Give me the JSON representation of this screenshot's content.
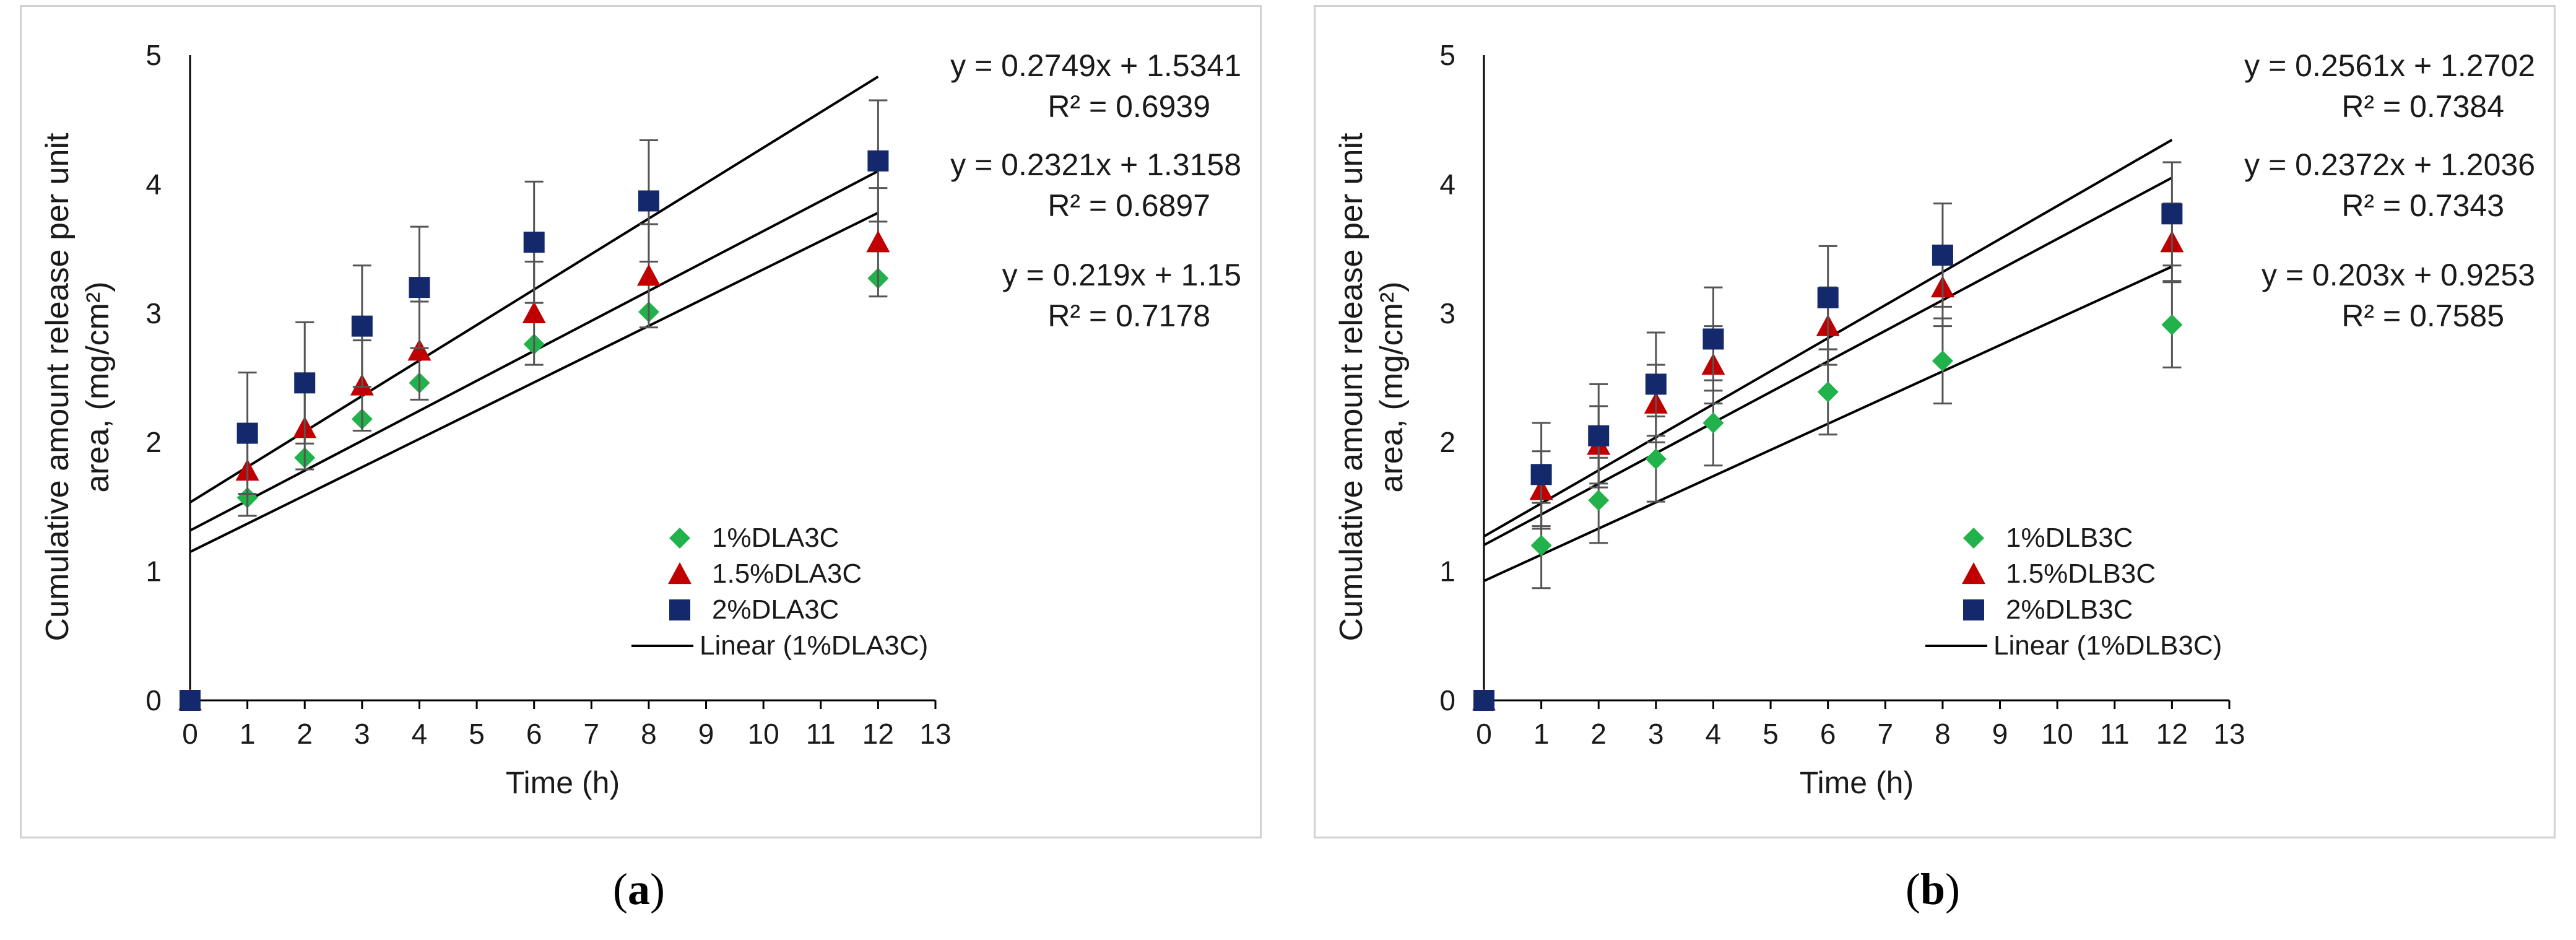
{
  "colors": {
    "series1": "#21b24b",
    "series2": "#c00000",
    "series3": "#13296b",
    "line": "#000000",
    "errbar": "#555555"
  },
  "chart_data": [
    {
      "panel": "a",
      "caption_letter": "a",
      "type": "scatter",
      "xlabel": "Time (h)",
      "ylabel_lines": [
        "Cumulative amount release per unit",
        "area, (mg/cm²)"
      ],
      "xlim": [
        0,
        13
      ],
      "ylim": [
        0,
        5
      ],
      "xticks": [
        "0",
        "1",
        "2",
        "3",
        "4",
        "5",
        "6",
        "7",
        "8",
        "9",
        "10",
        "11",
        "12",
        "13"
      ],
      "yticks": [
        "0",
        "1",
        "2",
        "3",
        "4",
        "5"
      ],
      "x": [
        0,
        1,
        2,
        3,
        4,
        6,
        8,
        12
      ],
      "series": [
        {
          "name": "1%DLA3C",
          "marker": "diamond",
          "values": [
            0,
            1.57,
            1.88,
            2.18,
            2.46,
            2.76,
            3.01,
            3.27
          ],
          "errors": [
            0,
            0,
            0,
            0,
            0,
            0,
            0,
            0
          ]
        },
        {
          "name": "1.5%DLA3C",
          "marker": "triangle",
          "values": [
            0,
            1.78,
            2.11,
            2.44,
            2.71,
            3.0,
            3.29,
            3.55
          ],
          "errors": [
            0,
            0.35,
            0.32,
            0.35,
            0.38,
            0.4,
            0.4,
            0.42
          ]
        },
        {
          "name": "2%DLA3C",
          "marker": "square",
          "values": [
            0,
            2.07,
            2.46,
            2.9,
            3.2,
            3.55,
            3.87,
            4.18
          ],
          "errors": [
            0,
            0.47,
            0.47,
            0.47,
            0.47,
            0.47,
            0.47,
            0.47
          ]
        }
      ],
      "trendlines": [
        {
          "slope": 0.2749,
          "intercept": 1.5341,
          "equation": "y = 0.2749x + 1.5341",
          "r2": "R² = 0.6939"
        },
        {
          "slope": 0.2321,
          "intercept": 1.3158,
          "equation": "y = 0.2321x + 1.3158",
          "r2": "R² = 0.6897"
        },
        {
          "slope": 0.219,
          "intercept": 1.15,
          "equation": "y = 0.219x + 1.15",
          "r2": "R² = 0.7178"
        }
      ],
      "legend": [
        "1%DLA3C",
        "1.5%DLA3C",
        "2%DLA3C",
        "Linear (1%DLA3C)"
      ]
    },
    {
      "panel": "b",
      "caption_letter": "b",
      "type": "scatter",
      "xlabel": "Time (h)",
      "ylabel_lines": [
        "Cumulative amount release per unit",
        "area, (mg/cm²)"
      ],
      "xlim": [
        0,
        13
      ],
      "ylim": [
        0,
        5
      ],
      "xticks": [
        "0",
        "1",
        "2",
        "3",
        "4",
        "5",
        "6",
        "7",
        "8",
        "9",
        "10",
        "11",
        "12",
        "13"
      ],
      "yticks": [
        "0",
        "1",
        "2",
        "3",
        "4",
        "5"
      ],
      "x": [
        0,
        1,
        2,
        3,
        4,
        6,
        8,
        12
      ],
      "series": [
        {
          "name": "1%DLB3C",
          "marker": "diamond",
          "values": [
            0,
            1.2,
            1.55,
            1.87,
            2.15,
            2.39,
            2.63,
            2.91
          ],
          "errors": [
            0,
            0.33,
            0.33,
            0.33,
            0.33,
            0.33,
            0.33,
            0.33
          ]
        },
        {
          "name": "1.5%DLB3C",
          "marker": "triangle",
          "values": [
            0,
            1.63,
            1.98,
            2.3,
            2.6,
            2.9,
            3.2,
            3.55
          ],
          "errors": [
            0,
            0.3,
            0.3,
            0.3,
            0.3,
            0.3,
            0.3,
            0.3
          ]
        },
        {
          "name": "2%DLB3C",
          "marker": "square",
          "values": [
            0,
            1.75,
            2.05,
            2.45,
            2.8,
            3.12,
            3.45,
            3.77
          ],
          "errors": [
            0,
            0.4,
            0.4,
            0.4,
            0.4,
            0.4,
            0.4,
            0.4
          ]
        }
      ],
      "trendlines": [
        {
          "slope": 0.2561,
          "intercept": 1.2702,
          "equation": "y = 0.2561x + 1.2702",
          "r2": "R² = 0.7384"
        },
        {
          "slope": 0.2372,
          "intercept": 1.2036,
          "equation": "y = 0.2372x + 1.2036",
          "r2": "R² = 0.7343"
        },
        {
          "slope": 0.203,
          "intercept": 0.9253,
          "equation": "y = 0.203x + 0.9253",
          "r2": "R² = 0.7585"
        }
      ],
      "legend": [
        "1%DLB3C",
        "1.5%DLB3C",
        "2%DLB3C",
        "Linear (1%DLB3C)"
      ]
    }
  ]
}
